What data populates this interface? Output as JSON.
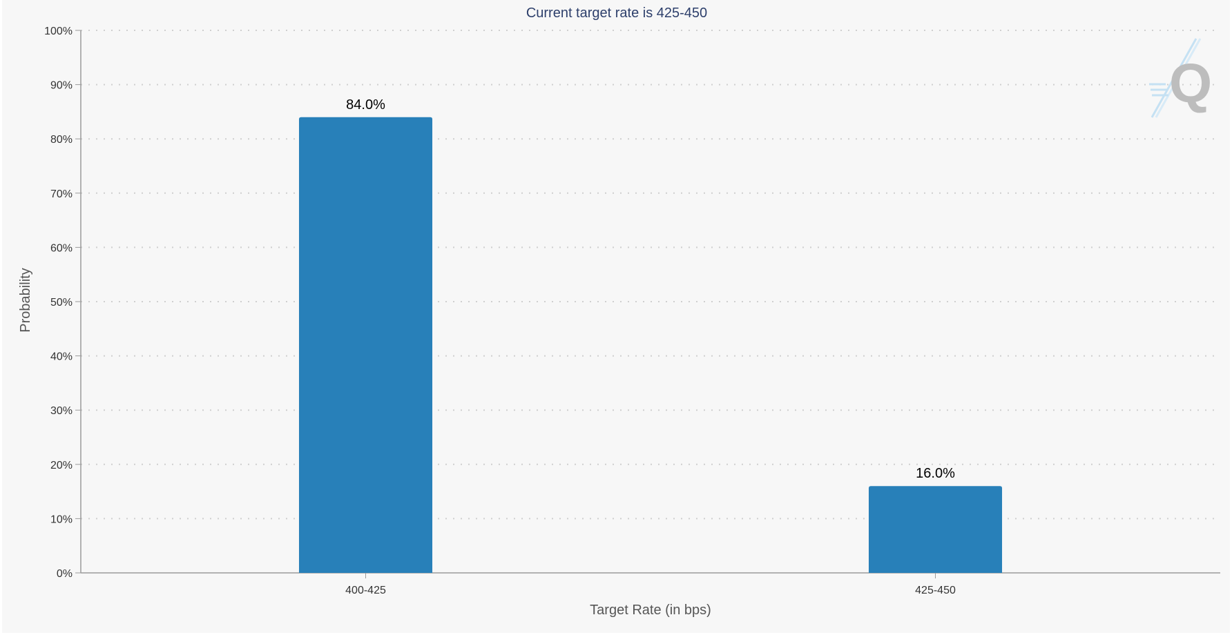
{
  "chart_data": {
    "type": "bar",
    "title": "Current target rate is 425-450",
    "xlabel": "Target Rate (in bps)",
    "ylabel": "Probability",
    "categories": [
      "400-425",
      "425-450"
    ],
    "values": [
      84.0,
      16.0
    ],
    "value_labels": [
      "84.0%",
      "16.0%"
    ],
    "ylim": [
      0,
      100
    ],
    "y_ticks": [
      0,
      10,
      20,
      30,
      40,
      50,
      60,
      70,
      80,
      90,
      100
    ],
    "y_tick_labels": [
      "0%",
      "10%",
      "20%",
      "30%",
      "40%",
      "50%",
      "60%",
      "70%",
      "80%",
      "90%",
      "100%"
    ],
    "grid": true,
    "legend": "none",
    "bar_color": "#2880b9",
    "background_color": "#f7f7f7",
    "watermark": "Q"
  }
}
